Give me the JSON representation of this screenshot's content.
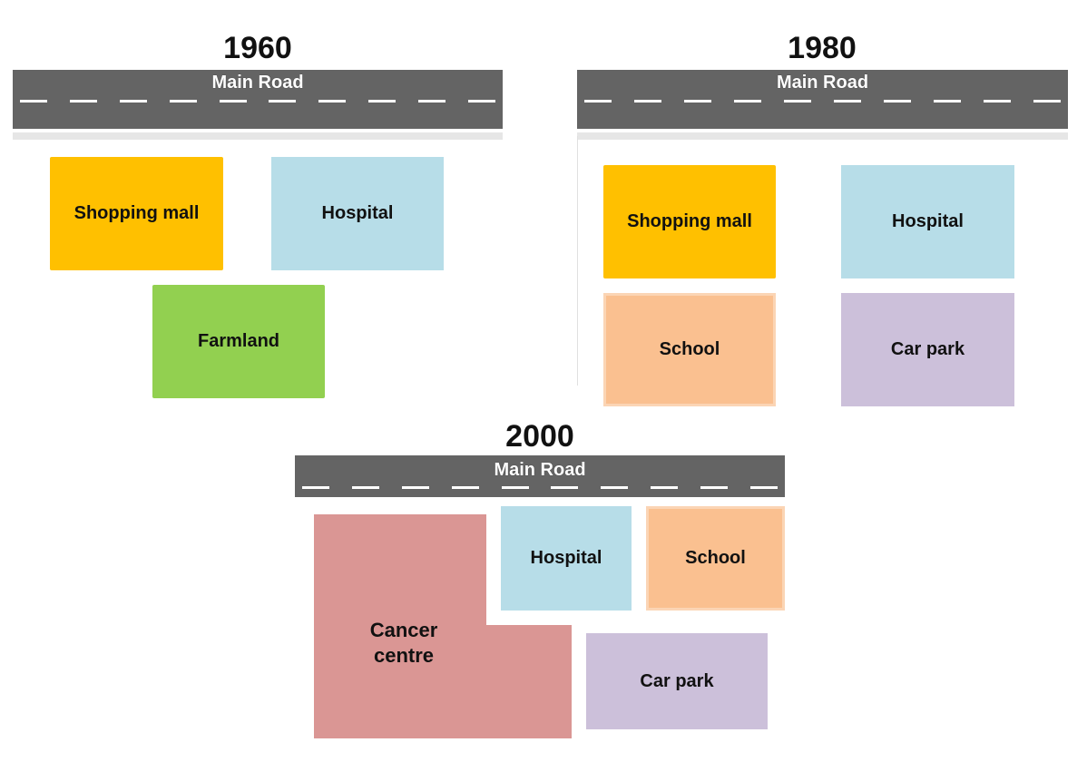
{
  "road_label": "Main Road",
  "maps": [
    {
      "year": "1960",
      "buildings": [
        {
          "label": "Shopping mall"
        },
        {
          "label": "Hospital"
        },
        {
          "label": "Farmland"
        }
      ]
    },
    {
      "year": "1980",
      "buildings": [
        {
          "label": "Shopping mall"
        },
        {
          "label": "Hospital"
        },
        {
          "label": "School"
        },
        {
          "label": "Car park"
        }
      ]
    },
    {
      "year": "2000",
      "buildings": [
        {
          "label": "Hospital"
        },
        {
          "label": "School"
        },
        {
          "label": "Cancer\ncentre"
        },
        {
          "label": "Car park"
        }
      ]
    }
  ],
  "colors": {
    "road": "#646464",
    "shopping_mall": "#ffc000",
    "hospital": "#b7dde8",
    "farmland": "#92d050",
    "school": "#fac090",
    "car_park": "#ccc0da",
    "cancer_centre": "#da9694"
  }
}
